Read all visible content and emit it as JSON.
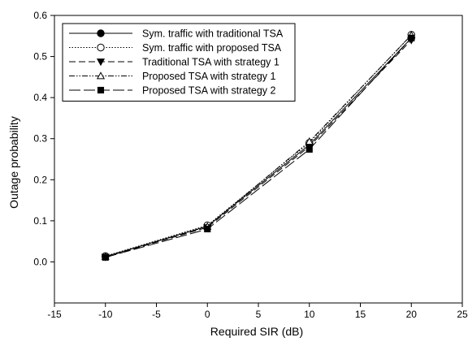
{
  "chart_data": {
    "type": "line",
    "xlabel": "Required SIR  (dB)",
    "ylabel": "Outage probability",
    "xlim": [
      -15,
      25
    ],
    "ylim": [
      -0.1,
      0.6
    ],
    "xticks": [
      -15,
      -10,
      -5,
      0,
      5,
      10,
      15,
      20,
      25
    ],
    "yticks": [
      0.0,
      0.1,
      0.2,
      0.3,
      0.4,
      0.5,
      0.6
    ],
    "grid": false,
    "legend_position": "top-left",
    "x": [
      -10,
      0,
      10,
      20
    ],
    "series": [
      {
        "name": "Sym. traffic with traditional TSA",
        "values": [
          0.013,
          0.087,
          0.285,
          0.545
        ],
        "line": "solid",
        "marker": "circle-filled"
      },
      {
        "name": "Sym. traffic with proposed TSA",
        "values": [
          0.014,
          0.089,
          0.29,
          0.553
        ],
        "line": "dotted",
        "marker": "circle-open"
      },
      {
        "name": "Traditional TSA with strategy 1",
        "values": [
          0.012,
          0.084,
          0.281,
          0.54
        ],
        "line": "dashed",
        "marker": "triangle-down-filled"
      },
      {
        "name": "Proposed TSA with strategy 1",
        "values": [
          0.013,
          0.086,
          0.293,
          0.552
        ],
        "line": "dashdotdot",
        "marker": "triangle-up-open"
      },
      {
        "name": "Proposed TSA with strategy 2",
        "values": [
          0.011,
          0.08,
          0.274,
          0.545
        ],
        "line": "longdash",
        "marker": "square-filled"
      }
    ]
  }
}
